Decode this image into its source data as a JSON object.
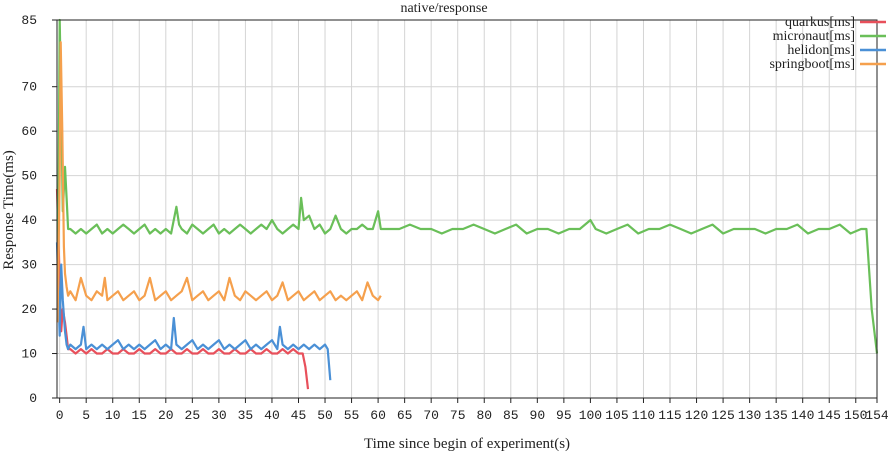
{
  "chart_data": {
    "type": "line",
    "title": "native/response",
    "xlabel": "Time since begin of experiment(s)",
    "ylabel": "Response Time(ms)",
    "xlim": [
      -0.5,
      154
    ],
    "ylim": [
      0,
      85
    ],
    "grid": true,
    "legend_position": "top-right",
    "x_ticks": [
      0,
      5,
      10,
      15,
      20,
      25,
      30,
      35,
      40,
      45,
      50,
      55,
      60,
      65,
      70,
      75,
      80,
      85,
      90,
      95,
      100,
      105,
      110,
      115,
      120,
      125,
      130,
      135,
      140,
      145,
      150,
      154
    ],
    "x_tick_labels": [
      "0",
      "5",
      "10",
      "15",
      "20",
      "25",
      "30",
      "35",
      "40",
      "45",
      "50",
      "55",
      "60",
      "65",
      "70",
      "75",
      "80",
      "85",
      "90",
      "95",
      "100",
      "105",
      "110",
      "115",
      "120",
      "125",
      "130",
      "135",
      "140",
      "145",
      "150",
      "154"
    ],
    "y_ticks": [
      0,
      10,
      20,
      30,
      40,
      50,
      60,
      70,
      85
    ],
    "y_tick_labels": [
      "0",
      "10",
      "20",
      "30",
      "40",
      "50",
      "60",
      "70",
      "85"
    ],
    "series": [
      {
        "name": "quarkus[ms]",
        "color": "#e8505b",
        "points": [
          [
            -0.5,
            47
          ],
          [
            0,
            26
          ],
          [
            0.3,
            15
          ],
          [
            0.6,
            20
          ],
          [
            1,
            17
          ],
          [
            1.3,
            14
          ],
          [
            1.6,
            11
          ],
          [
            2,
            11
          ],
          [
            3,
            10
          ],
          [
            4,
            11
          ],
          [
            5,
            10
          ],
          [
            6,
            11
          ],
          [
            7,
            10
          ],
          [
            8,
            10
          ],
          [
            9,
            11
          ],
          [
            10,
            10
          ],
          [
            11,
            10
          ],
          [
            12,
            11
          ],
          [
            13,
            10
          ],
          [
            14,
            10
          ],
          [
            15,
            11
          ],
          [
            16,
            10
          ],
          [
            17,
            10
          ],
          [
            18,
            11
          ],
          [
            19,
            10
          ],
          [
            20,
            10
          ],
          [
            21,
            11
          ],
          [
            22,
            10
          ],
          [
            23,
            10
          ],
          [
            24,
            11
          ],
          [
            25,
            10
          ],
          [
            26,
            10
          ],
          [
            27,
            11
          ],
          [
            28,
            10
          ],
          [
            29,
            10
          ],
          [
            30,
            11
          ],
          [
            31,
            10
          ],
          [
            32,
            10
          ],
          [
            33,
            11
          ],
          [
            34,
            10
          ],
          [
            35,
            10
          ],
          [
            36,
            11
          ],
          [
            37,
            10
          ],
          [
            38,
            10
          ],
          [
            39,
            11
          ],
          [
            40,
            10
          ],
          [
            41,
            10
          ],
          [
            42,
            11
          ],
          [
            43,
            10
          ],
          [
            44,
            11
          ],
          [
            45,
            10
          ],
          [
            45.8,
            10
          ],
          [
            46.3,
            7
          ],
          [
            46.8,
            2
          ]
        ]
      },
      {
        "name": "micronaut[ms]",
        "color": "#6abf59",
        "points": [
          [
            -0.3,
            28
          ],
          [
            0,
            85
          ],
          [
            0.3,
            66
          ],
          [
            0.6,
            42
          ],
          [
            1,
            52
          ],
          [
            1.3,
            45
          ],
          [
            1.6,
            38
          ],
          [
            2,
            38
          ],
          [
            3,
            37
          ],
          [
            4,
            38
          ],
          [
            5,
            37
          ],
          [
            6,
            38
          ],
          [
            7,
            39
          ],
          [
            8,
            37
          ],
          [
            9,
            38
          ],
          [
            10,
            37
          ],
          [
            11,
            38
          ],
          [
            12,
            39
          ],
          [
            13,
            38
          ],
          [
            14,
            37
          ],
          [
            15,
            38
          ],
          [
            16,
            39
          ],
          [
            17,
            37
          ],
          [
            18,
            38
          ],
          [
            19,
            37
          ],
          [
            20,
            38
          ],
          [
            21,
            37
          ],
          [
            22,
            43
          ],
          [
            22.5,
            39
          ],
          [
            23,
            38
          ],
          [
            24,
            37
          ],
          [
            25,
            39
          ],
          [
            26,
            38
          ],
          [
            27,
            37
          ],
          [
            28,
            38
          ],
          [
            29,
            39
          ],
          [
            30,
            37
          ],
          [
            31,
            38
          ],
          [
            32,
            37
          ],
          [
            33,
            38
          ],
          [
            34,
            39
          ],
          [
            35,
            38
          ],
          [
            36,
            37
          ],
          [
            37,
            38
          ],
          [
            38,
            39
          ],
          [
            39,
            38
          ],
          [
            40,
            40
          ],
          [
            41,
            38
          ],
          [
            42,
            37
          ],
          [
            43,
            38
          ],
          [
            44,
            39
          ],
          [
            45,
            38
          ],
          [
            45.5,
            45
          ],
          [
            46,
            40
          ],
          [
            47,
            41
          ],
          [
            48,
            38
          ],
          [
            49,
            39
          ],
          [
            50,
            37
          ],
          [
            51,
            38
          ],
          [
            52,
            41
          ],
          [
            53,
            38
          ],
          [
            54,
            37
          ],
          [
            55,
            38
          ],
          [
            56,
            38
          ],
          [
            57,
            39
          ],
          [
            58,
            38
          ],
          [
            59,
            38
          ],
          [
            60,
            42
          ],
          [
            60.5,
            38
          ],
          [
            62,
            38
          ],
          [
            64,
            38
          ],
          [
            66,
            39
          ],
          [
            68,
            38
          ],
          [
            70,
            38
          ],
          [
            72,
            37
          ],
          [
            74,
            38
          ],
          [
            76,
            38
          ],
          [
            78,
            39
          ],
          [
            80,
            38
          ],
          [
            82,
            37
          ],
          [
            84,
            38
          ],
          [
            86,
            39
          ],
          [
            88,
            37
          ],
          [
            90,
            38
          ],
          [
            92,
            38
          ],
          [
            94,
            37
          ],
          [
            96,
            38
          ],
          [
            98,
            38
          ],
          [
            100,
            40
          ],
          [
            101,
            38
          ],
          [
            103,
            37
          ],
          [
            105,
            38
          ],
          [
            107,
            39
          ],
          [
            109,
            37
          ],
          [
            111,
            38
          ],
          [
            113,
            38
          ],
          [
            115,
            39
          ],
          [
            117,
            38
          ],
          [
            119,
            37
          ],
          [
            121,
            38
          ],
          [
            123,
            39
          ],
          [
            125,
            37
          ],
          [
            127,
            38
          ],
          [
            129,
            38
          ],
          [
            131,
            38
          ],
          [
            133,
            37
          ],
          [
            135,
            38
          ],
          [
            137,
            38
          ],
          [
            139,
            39
          ],
          [
            141,
            37
          ],
          [
            143,
            38
          ],
          [
            145,
            38
          ],
          [
            147,
            39
          ],
          [
            149,
            37
          ],
          [
            151,
            38
          ],
          [
            152,
            38
          ],
          [
            153,
            20
          ],
          [
            154,
            10
          ]
        ]
      },
      {
        "name": "helidon[ms]",
        "color": "#4a90d6",
        "points": [
          [
            -0.5,
            35
          ],
          [
            0,
            14
          ],
          [
            0.3,
            30
          ],
          [
            0.6,
            22
          ],
          [
            1,
            15
          ],
          [
            1.3,
            12
          ],
          [
            1.6,
            11
          ],
          [
            2,
            12
          ],
          [
            3,
            11
          ],
          [
            4,
            12
          ],
          [
            4.5,
            16
          ],
          [
            5,
            11
          ],
          [
            6,
            12
          ],
          [
            7,
            11
          ],
          [
            8,
            12
          ],
          [
            9,
            11
          ],
          [
            10,
            12
          ],
          [
            11,
            13
          ],
          [
            12,
            11
          ],
          [
            13,
            12
          ],
          [
            14,
            11
          ],
          [
            15,
            12
          ],
          [
            16,
            11
          ],
          [
            17,
            12
          ],
          [
            18,
            13
          ],
          [
            19,
            11
          ],
          [
            20,
            12
          ],
          [
            21,
            11
          ],
          [
            21.5,
            18
          ],
          [
            22,
            12
          ],
          [
            23,
            11
          ],
          [
            24,
            12
          ],
          [
            25,
            13
          ],
          [
            26,
            11
          ],
          [
            27,
            12
          ],
          [
            28,
            11
          ],
          [
            29,
            12
          ],
          [
            30,
            13
          ],
          [
            31,
            11
          ],
          [
            32,
            12
          ],
          [
            33,
            11
          ],
          [
            34,
            12
          ],
          [
            35,
            13
          ],
          [
            36,
            11
          ],
          [
            37,
            12
          ],
          [
            38,
            11
          ],
          [
            39,
            12
          ],
          [
            40,
            13
          ],
          [
            41,
            11
          ],
          [
            41.5,
            16
          ],
          [
            42,
            12
          ],
          [
            43,
            11
          ],
          [
            44,
            12
          ],
          [
            45,
            11
          ],
          [
            46,
            12
          ],
          [
            47,
            11
          ],
          [
            48,
            12
          ],
          [
            49,
            11
          ],
          [
            50,
            12
          ],
          [
            50.5,
            11
          ],
          [
            51,
            4
          ]
        ]
      },
      {
        "name": "springboot[ms]",
        "color": "#f5a04d",
        "points": [
          [
            -0.4,
            17
          ],
          [
            0,
            50
          ],
          [
            0.2,
            80
          ],
          [
            0.5,
            60
          ],
          [
            0.8,
            34
          ],
          [
            1,
            28
          ],
          [
            1.3,
            25
          ],
          [
            1.6,
            23
          ],
          [
            2,
            24
          ],
          [
            3,
            22
          ],
          [
            4,
            27
          ],
          [
            5,
            23
          ],
          [
            6,
            22
          ],
          [
            7,
            24
          ],
          [
            8,
            23
          ],
          [
            8.5,
            27
          ],
          [
            9,
            22
          ],
          [
            10,
            23
          ],
          [
            11,
            24
          ],
          [
            12,
            22
          ],
          [
            13,
            23
          ],
          [
            14,
            24
          ],
          [
            15,
            22
          ],
          [
            16,
            23
          ],
          [
            17,
            27
          ],
          [
            18,
            22
          ],
          [
            19,
            23
          ],
          [
            20,
            24
          ],
          [
            21,
            22
          ],
          [
            22,
            23
          ],
          [
            23,
            24
          ],
          [
            24,
            27
          ],
          [
            25,
            22
          ],
          [
            26,
            23
          ],
          [
            27,
            24
          ],
          [
            28,
            22
          ],
          [
            29,
            23
          ],
          [
            30,
            24
          ],
          [
            31,
            22
          ],
          [
            32,
            27
          ],
          [
            33,
            23
          ],
          [
            34,
            22
          ],
          [
            35,
            24
          ],
          [
            36,
            23
          ],
          [
            37,
            22
          ],
          [
            38,
            23
          ],
          [
            39,
            24
          ],
          [
            40,
            22
          ],
          [
            41,
            23
          ],
          [
            42,
            26
          ],
          [
            43,
            22
          ],
          [
            44,
            23
          ],
          [
            45,
            24
          ],
          [
            46,
            22
          ],
          [
            47,
            23
          ],
          [
            48,
            24
          ],
          [
            49,
            22
          ],
          [
            50,
            23
          ],
          [
            51,
            24
          ],
          [
            52,
            22
          ],
          [
            53,
            23
          ],
          [
            54,
            22
          ],
          [
            55,
            23
          ],
          [
            56,
            24
          ],
          [
            57,
            22
          ],
          [
            58,
            26
          ],
          [
            59,
            23
          ],
          [
            60,
            22
          ],
          [
            60.5,
            23
          ]
        ]
      }
    ]
  }
}
